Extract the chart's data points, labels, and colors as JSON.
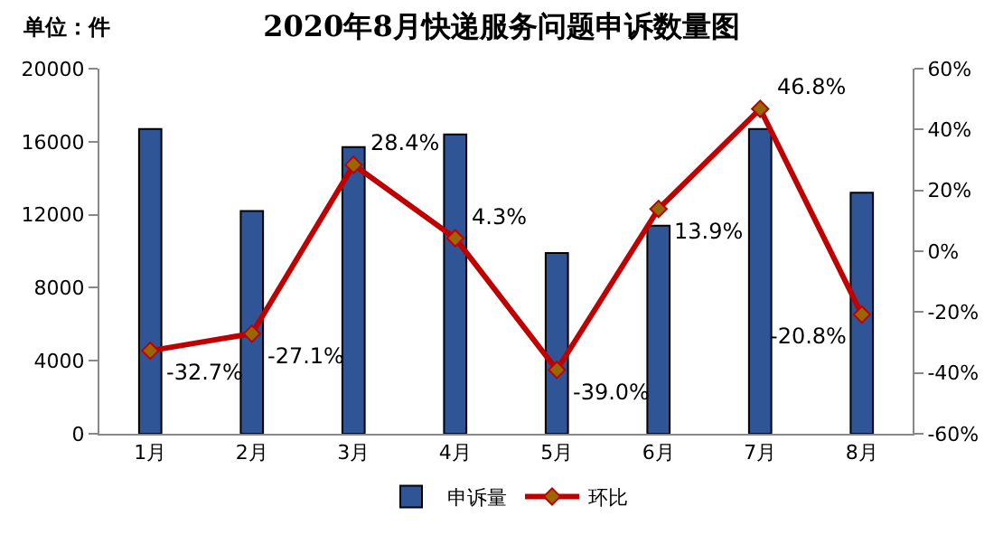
{
  "chart_data": {
    "type": "bar",
    "title": "2020年8月快递服务问题申诉数量图",
    "annotations": [
      "单位：件"
    ],
    "categories": [
      "1月",
      "2月",
      "3月",
      "4月",
      "5月",
      "6月",
      "7月",
      "8月"
    ],
    "series": [
      {
        "name": "申诉量",
        "color": "#2f5597",
        "values": [
          16700,
          12200,
          15700,
          16400,
          9900,
          11400,
          16700,
          13200
        ]
      },
      {
        "name": "环比",
        "type": "line",
        "axis": "y2",
        "color": "#c00000",
        "marker": "diamond",
        "values": [
          -32.7,
          -27.1,
          28.4,
          4.3,
          -39.0,
          13.9,
          46.8,
          -20.8
        ],
        "value_labels": [
          "-32.7%",
          "-27.1%",
          "28.4%",
          "4.3%",
          "-39.0%",
          "13.9%",
          "46.8%",
          "-20.8%"
        ]
      }
    ],
    "ylim": [
      0,
      20000
    ],
    "yticks": [
      0,
      4000,
      8000,
      12000,
      16000,
      20000
    ],
    "y2lim": [
      -60,
      60
    ],
    "y2ticks": [
      {
        "value": -60,
        "label": "-60%"
      },
      {
        "value": -40,
        "label": "-40%"
      },
      {
        "value": -20,
        "label": "-20%"
      },
      {
        "value": 0,
        "label": "0%"
      },
      {
        "value": 20,
        "label": "20%"
      },
      {
        "value": 40,
        "label": "40%"
      },
      {
        "value": 60,
        "label": "60%"
      }
    ],
    "legend": "bottom"
  }
}
